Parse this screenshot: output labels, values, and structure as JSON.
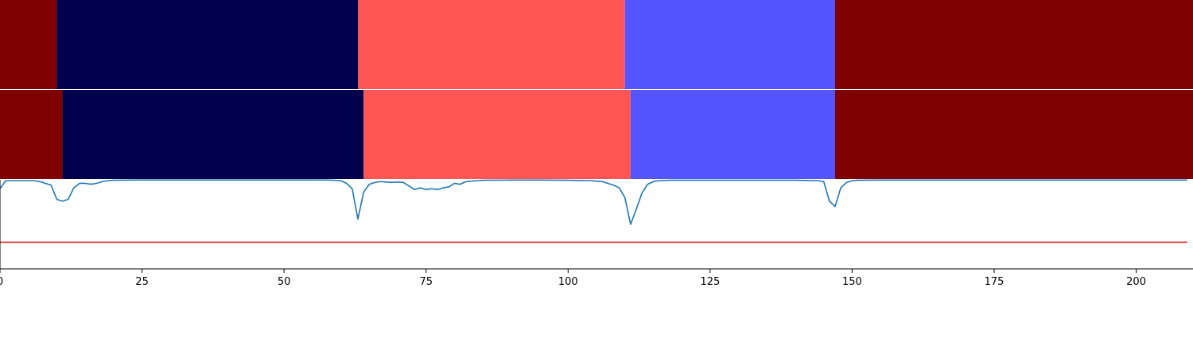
{
  "chart_data": {
    "type": "segmentation-timeline",
    "xlim": [
      0,
      210
    ],
    "xticks": [
      0,
      25,
      50,
      75,
      100,
      125,
      150,
      175,
      200
    ],
    "xtick_labels": [
      "0",
      "25",
      "50",
      "75",
      "100",
      "125",
      "150",
      "175",
      "200"
    ],
    "rows": [
      {
        "segments": [
          {
            "start": 0,
            "end": 10,
            "color": "#7f0000"
          },
          {
            "start": 10,
            "end": 63,
            "color": "#00004c"
          },
          {
            "start": 63,
            "end": 110,
            "color": "#ff5555"
          },
          {
            "start": 110,
            "end": 147,
            "color": "#5555ff"
          },
          {
            "start": 147,
            "end": 210,
            "color": "#7f0000"
          }
        ]
      },
      {
        "segments": [
          {
            "start": 0,
            "end": 11,
            "color": "#7f0000"
          },
          {
            "start": 11,
            "end": 64,
            "color": "#00004c"
          },
          {
            "start": 64,
            "end": 111,
            "color": "#ff5555"
          },
          {
            "start": 111,
            "end": 147,
            "color": "#5555ff"
          },
          {
            "start": 147,
            "end": 210,
            "color": "#7f0000"
          }
        ]
      }
    ],
    "line_panel": {
      "ylim": [
        0,
        1
      ],
      "threshold": 0.3,
      "threshold_color": "#d62728",
      "line_color": "#1f77b4",
      "series": [
        [
          0,
          0.9
        ],
        [
          1,
          0.99
        ],
        [
          2,
          0.99
        ],
        [
          3,
          0.99
        ],
        [
          4,
          0.99
        ],
        [
          5,
          0.99
        ],
        [
          6,
          0.99
        ],
        [
          7,
          0.98
        ],
        [
          8,
          0.96
        ],
        [
          9,
          0.94
        ],
        [
          10,
          0.78
        ],
        [
          11,
          0.76
        ],
        [
          12,
          0.78
        ],
        [
          13,
          0.91
        ],
        [
          14,
          0.96
        ],
        [
          15,
          0.96
        ],
        [
          16,
          0.95
        ],
        [
          17,
          0.96
        ],
        [
          18,
          0.98
        ],
        [
          19,
          0.99
        ],
        [
          20,
          0.995
        ],
        [
          25,
          0.998
        ],
        [
          30,
          0.998
        ],
        [
          35,
          0.998
        ],
        [
          40,
          0.998
        ],
        [
          45,
          0.998
        ],
        [
          50,
          0.998
        ],
        [
          55,
          0.998
        ],
        [
          58,
          0.997
        ],
        [
          60,
          0.99
        ],
        [
          61,
          0.96
        ],
        [
          62,
          0.9
        ],
        [
          63,
          0.56
        ],
        [
          64,
          0.86
        ],
        [
          65,
          0.95
        ],
        [
          66,
          0.97
        ],
        [
          67,
          0.98
        ],
        [
          68,
          0.975
        ],
        [
          69,
          0.97
        ],
        [
          70,
          0.975
        ],
        [
          71,
          0.97
        ],
        [
          72,
          0.93
        ],
        [
          73,
          0.89
        ],
        [
          74,
          0.91
        ],
        [
          75,
          0.89
        ],
        [
          76,
          0.9
        ],
        [
          77,
          0.89
        ],
        [
          78,
          0.91
        ],
        [
          79,
          0.92
        ],
        [
          80,
          0.96
        ],
        [
          81,
          0.95
        ],
        [
          82,
          0.98
        ],
        [
          83,
          0.985
        ],
        [
          84,
          0.99
        ],
        [
          85,
          0.995
        ],
        [
          90,
          0.997
        ],
        [
          95,
          0.997
        ],
        [
          100,
          0.995
        ],
        [
          104,
          0.99
        ],
        [
          105,
          0.985
        ],
        [
          106,
          0.98
        ],
        [
          107,
          0.96
        ],
        [
          108,
          0.94
        ],
        [
          109,
          0.91
        ],
        [
          110,
          0.8
        ],
        [
          111,
          0.5
        ],
        [
          112,
          0.67
        ],
        [
          113,
          0.85
        ],
        [
          114,
          0.95
        ],
        [
          115,
          0.98
        ],
        [
          116,
          0.99
        ],
        [
          118,
          0.995
        ],
        [
          120,
          0.995
        ],
        [
          125,
          0.995
        ],
        [
          130,
          0.995
        ],
        [
          135,
          0.995
        ],
        [
          140,
          0.995
        ],
        [
          144,
          0.99
        ],
        [
          145,
          0.98
        ],
        [
          146,
          0.76
        ],
        [
          147,
          0.7
        ],
        [
          148,
          0.91
        ],
        [
          149,
          0.97
        ],
        [
          150,
          0.99
        ],
        [
          151,
          0.995
        ],
        [
          155,
          0.997
        ],
        [
          160,
          0.997
        ],
        [
          165,
          0.997
        ],
        [
          170,
          0.997
        ],
        [
          175,
          0.997
        ],
        [
          180,
          0.997
        ],
        [
          185,
          0.997
        ],
        [
          190,
          0.997
        ],
        [
          195,
          0.997
        ],
        [
          200,
          0.997
        ],
        [
          205,
          0.997
        ],
        [
          209,
          0.997
        ]
      ]
    }
  }
}
